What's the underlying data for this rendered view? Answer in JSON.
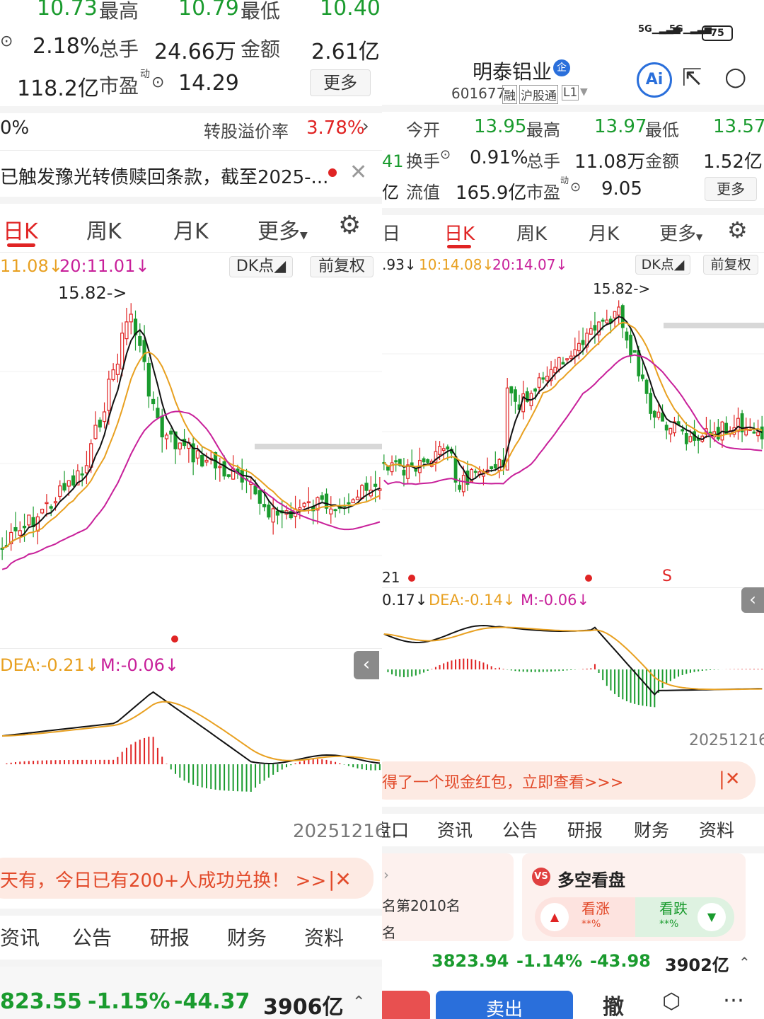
{
  "left": {
    "quote": {
      "row1": {
        "v1": "10.73",
        "high_label": "最高",
        "high": "10.79",
        "low_label": "最低",
        "low": "10.40"
      },
      "row2": {
        "turnover": "2.18%",
        "volume_label": "总手",
        "volume": "24.66万",
        "amount_label": "金额",
        "amount": "2.61亿"
      },
      "row3": {
        "cap": "118.2亿",
        "pe_label": "市盈",
        "pe_sup": "动",
        "pe": "14.29",
        "more": "更多"
      }
    },
    "premium": {
      "left": "0%",
      "label": "转股溢价率",
      "value": "3.78%"
    },
    "notice": "已触发豫光转债赎回条款，截至2025-...",
    "tabs": [
      "日K",
      "周K",
      "月K",
      "更多"
    ],
    "ma_line": {
      "a": "11.08↓",
      "b": "20:11.01↓"
    },
    "dk": "DK点",
    "fq": "前复权",
    "peak": "15.82->",
    "macd_line": {
      "dea": "DEA:-0.21↓",
      "m": "M:-0.06↓"
    },
    "date": "20251216",
    "banner": "天有，今日已有200+人成功兑换！ >>",
    "info_tabs": [
      "资讯",
      "公告",
      "研报",
      "财务",
      "资料"
    ],
    "index": {
      "value": "823.55",
      "pct": "-1.15%",
      "chg": "-44.37",
      "amt": "3906亿"
    }
  },
  "right": {
    "status": {
      "signal1": "5G",
      "signal2": "5G",
      "battery": "75"
    },
    "stock": {
      "name": "明泰铝业",
      "badge": "企",
      "code": "601677",
      "tag1": "融",
      "tag2": "沪股通",
      "tag3": "L1"
    },
    "quote": {
      "row1": {
        "open_label": "今开",
        "open": "13.95",
        "high_label": "最高",
        "high": "13.97",
        "low_label": "最低",
        "low": "13.57"
      },
      "row2": {
        "side": "41",
        "turn_label": "换手",
        "turn": "0.91%",
        "vol_label": "总手",
        "vol": "11.08万",
        "amt_label": "金额",
        "amt": "1.52亿"
      },
      "row3": {
        "side": "亿",
        "float_label": "流值",
        "float": "165.9亿",
        "pe_label": "市盈",
        "pe_sup": "动",
        "pe": "9.05",
        "more": "更多"
      }
    },
    "tabs": [
      "日",
      "日K",
      "周K",
      "月K",
      "更多"
    ],
    "ma_line": {
      "a": ".93↓",
      "b": "10:14.08↓",
      "c": "20:14.07↓"
    },
    "dk": "DK点",
    "fq": "前复权",
    "peak": "15.82->",
    "signal_s": "S",
    "signal_21": "21",
    "macd_line": {
      "dif": "0.17↓",
      "dea": "DEA:-0.14↓",
      "m": "M:-0.06↓"
    },
    "date": "20251216",
    "banner": "得了一个现金红包，立即查看>>>",
    "info_tabs": [
      "盘口",
      "资讯",
      "公告",
      "研报",
      "财务",
      "资料"
    ],
    "rank": {
      "text": "名第2010名",
      "text2": "名"
    },
    "vote": {
      "title": "多空看盘",
      "up": "看涨",
      "up_pct": "**%",
      "down": "看跌",
      "down_pct": "**%"
    },
    "index": {
      "value": "3823.94",
      "pct": "-1.14%",
      "chg": "-43.98",
      "amt": "3902亿"
    },
    "actions": {
      "sell": "卖出",
      "cancel": "撤"
    }
  },
  "colors": {
    "up": "#e02424",
    "down": "#1a9b2e",
    "ma5": "#111111",
    "ma10": "#e8a020",
    "ma20": "#c8209a"
  }
}
